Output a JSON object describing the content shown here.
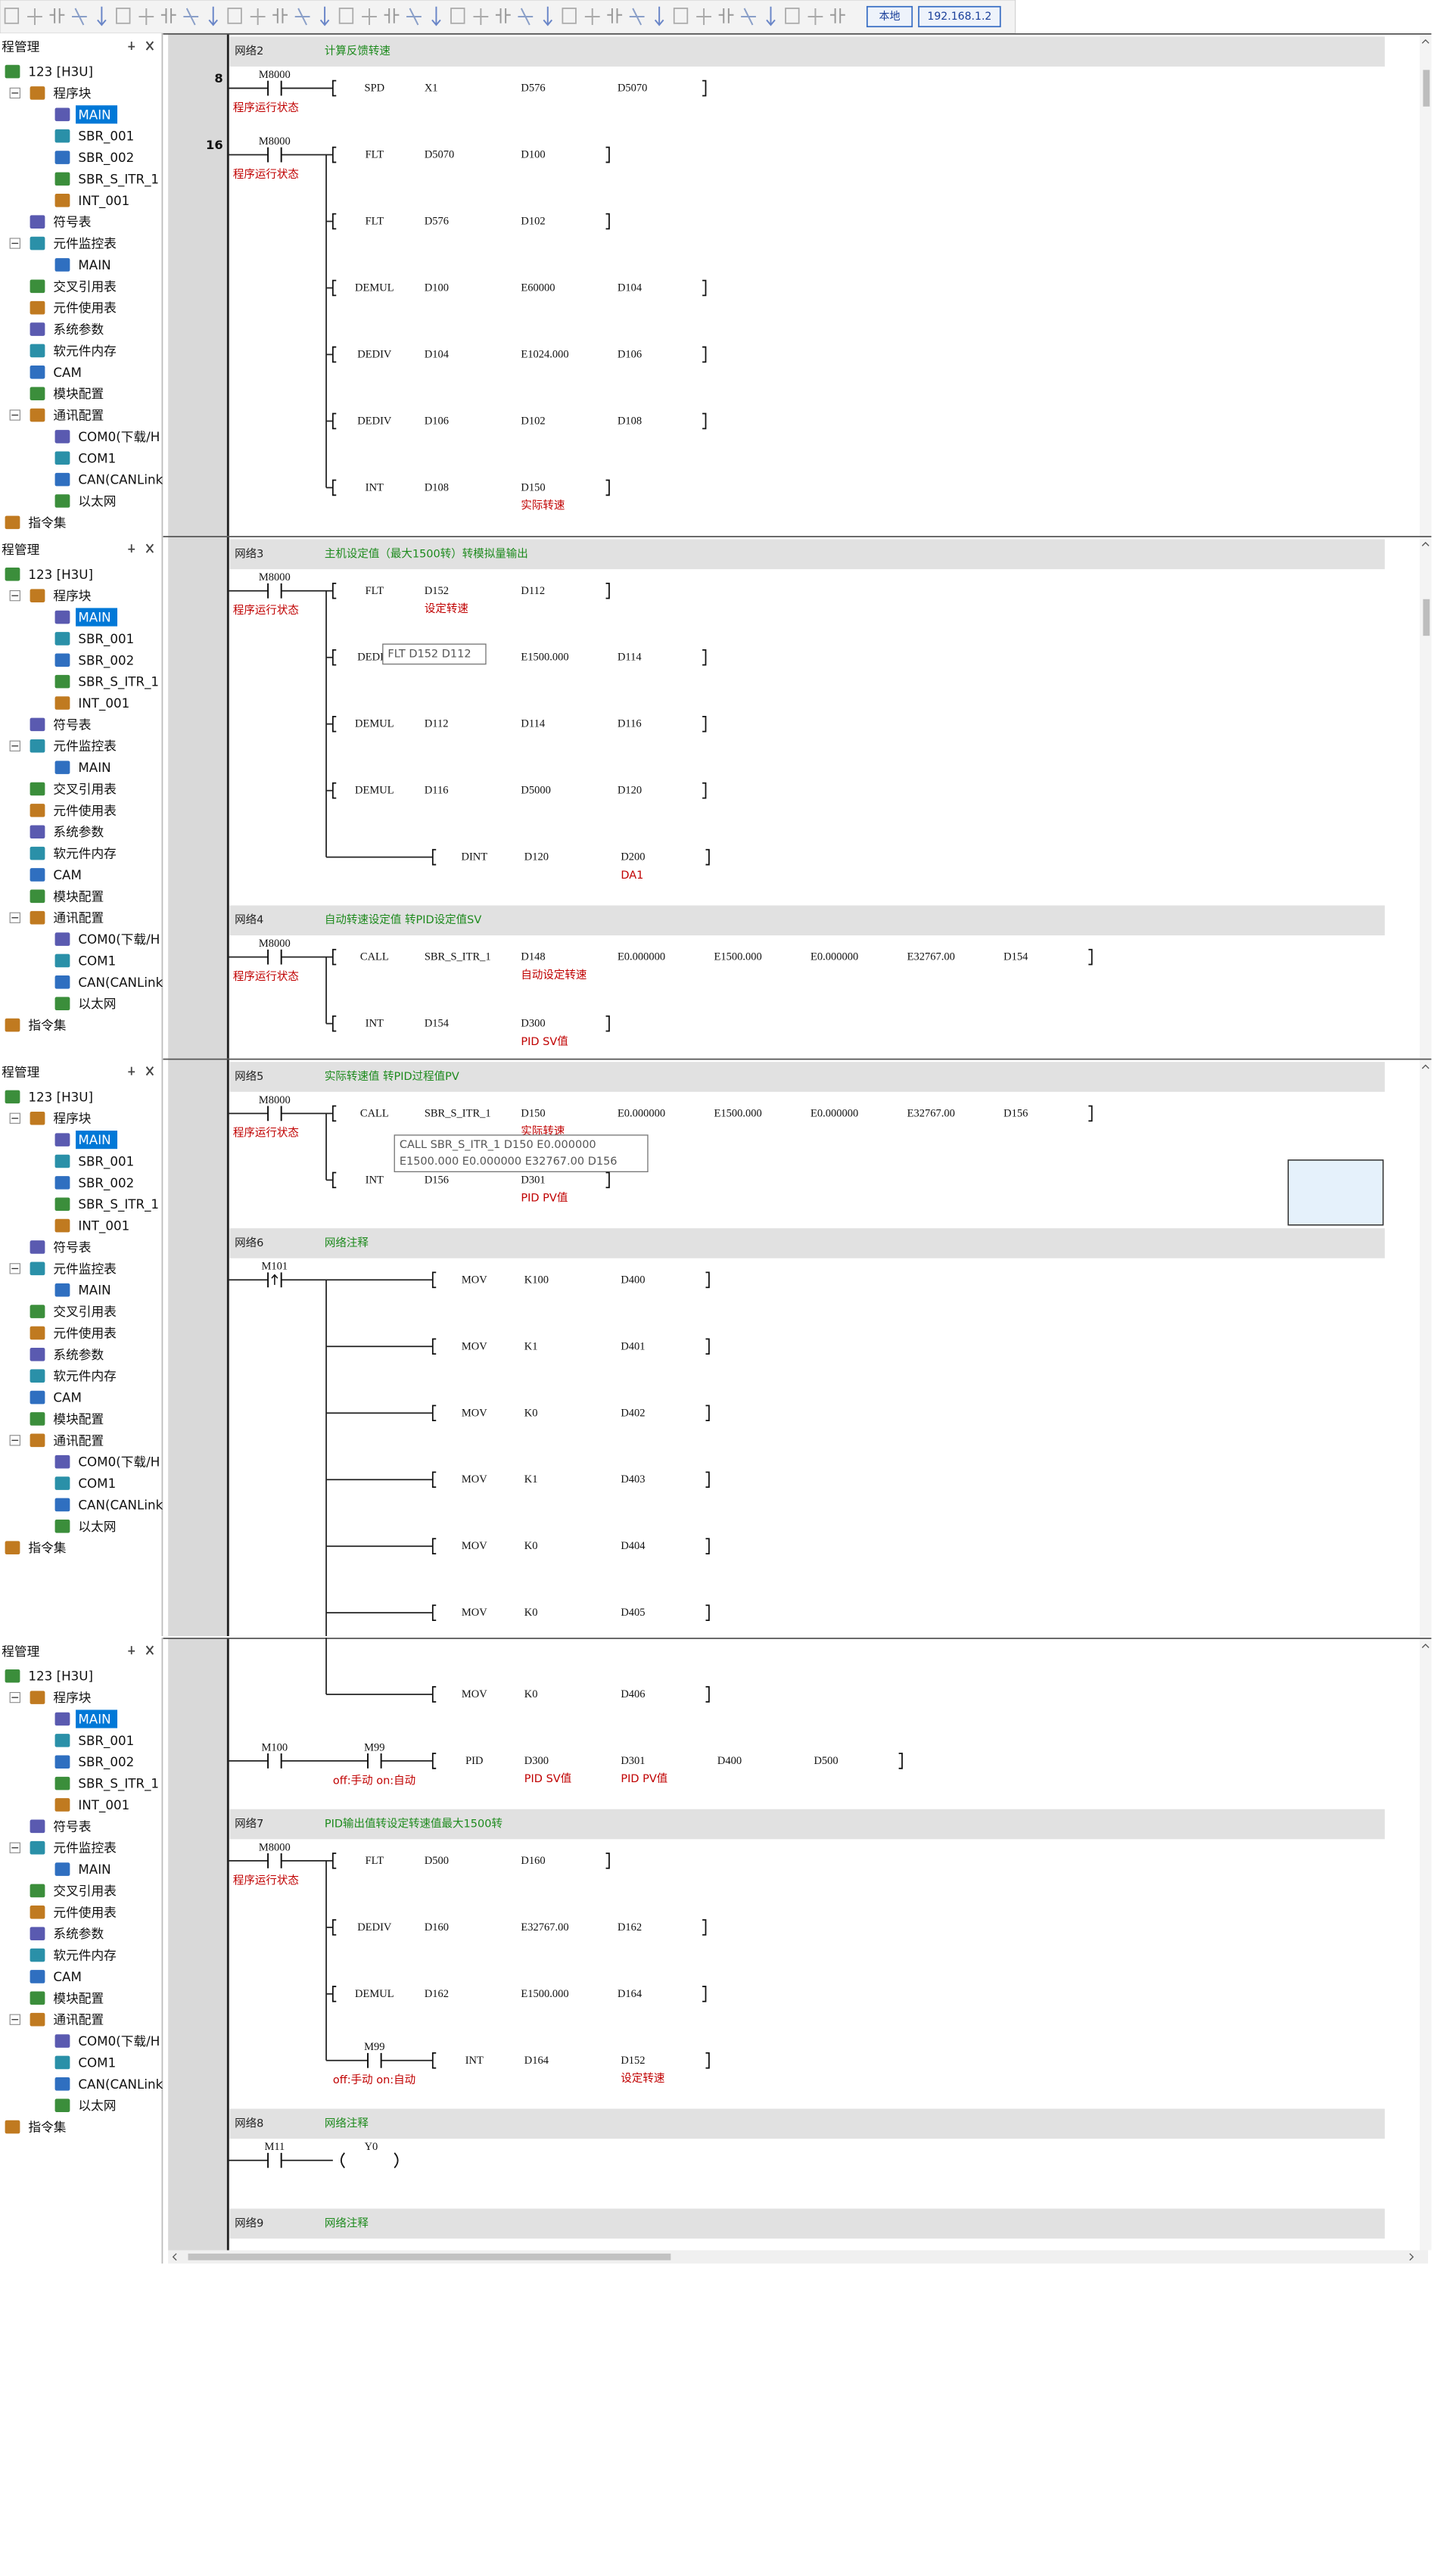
{
  "toolbar": {
    "local": "本地",
    "ip": "192.168.1.2"
  },
  "tree": {
    "title": "程管理",
    "nodes": [
      {
        "label": "123 [H3U]",
        "children": [
          {
            "label": "程序块",
            "children": [
              {
                "label": "MAIN",
                "selected": true
              },
              {
                "label": "SBR_001"
              },
              {
                "label": "SBR_002"
              },
              {
                "label": "SBR_S_ITR_1"
              },
              {
                "label": "INT_001"
              }
            ]
          },
          {
            "label": "符号表"
          },
          {
            "label": "元件监控表",
            "children": [
              {
                "label": "MAIN"
              }
            ]
          },
          {
            "label": "交叉引用表"
          },
          {
            "label": "元件使用表"
          },
          {
            "label": "系统参数"
          },
          {
            "label": "软元件内存"
          },
          {
            "label": "CAM"
          },
          {
            "label": "模块配置"
          },
          {
            "label": "通讯配置",
            "children": [
              {
                "label": "COM0(下载/H"
              },
              {
                "label": "COM1"
              },
              {
                "label": "CAN(CANLink"
              },
              {
                "label": "以太网"
              }
            ]
          }
        ]
      },
      {
        "label": "指令集"
      }
    ]
  },
  "panels": [
    {
      "items": [
        {
          "network": "网络2",
          "comment": "计算反馈转速"
        },
        {
          "step": "8",
          "rows": [
            {
              "contacts": [
                {
                  "name": "M8000",
                  "comment": "程序运行状态"
                }
              ],
              "op": "SPD",
              "args": [
                "X1",
                "D576",
                "D5070"
              ]
            }
          ]
        },
        {
          "step": "16",
          "rows": [
            {
              "contacts": [
                {
                  "name": "M8000",
                  "comment": "程序运行状态"
                }
              ],
              "op": "FLT",
              "args": [
                "D5070",
                "D100"
              ]
            },
            {
              "contacts": [],
              "op": "FLT",
              "args": [
                "D576",
                "D102"
              ]
            },
            {
              "contacts": [],
              "op": "DEMUL",
              "args": [
                "D100",
                "E60000",
                "D104"
              ]
            },
            {
              "contacts": [],
              "op": "DEDIV",
              "args": [
                "D104",
                "E1024.000",
                "D106"
              ]
            },
            {
              "contacts": [],
              "op": "DEDIV",
              "args": [
                "D106",
                "D102",
                "D108"
              ]
            },
            {
              "contacts": [],
              "op": "INT",
              "args": [
                "D108",
                "D150"
              ],
              "arg_notes": [
                null,
                "实际转速"
              ]
            }
          ]
        }
      ]
    },
    {
      "items": [
        {
          "network": "网络3",
          "comment": "主机设定值（最大1500转）转模拟量输出"
        },
        {
          "rows": [
            {
              "contacts": [
                {
                  "name": "M8000",
                  "comment": "程序运行状态"
                }
              ],
              "op": "FLT",
              "args": [
                "D152",
                "D112"
              ],
              "arg_notes": [
                "设定转速",
                null
              ]
            },
            {
              "contacts": [],
              "op": "DEDIV",
              "args": [
                null,
                "E1500.000",
                "D114"
              ],
              "tooltip": [
                "FLT D152 D112"
              ]
            },
            {
              "contacts": [],
              "op": "DEMUL",
              "args": [
                "D112",
                "D114",
                "D116"
              ]
            },
            {
              "contacts": [],
              "op": "DEMUL",
              "args": [
                "D116",
                "D5000",
                "D120"
              ]
            },
            {
              "contacts": [
                null
              ],
              "op": "DINT",
              "args": [
                "D120",
                "D200"
              ],
              "arg_notes": [
                null,
                "DA1"
              ]
            }
          ]
        },
        {
          "network": "网络4",
          "comment": "自动转速设定值 转PID设定值SV"
        },
        {
          "rows": [
            {
              "contacts": [
                {
                  "name": "M8000",
                  "comment": "程序运行状态"
                }
              ],
              "op": "CALL",
              "args": [
                "SBR_S_ITR_1",
                "D148",
                "E0.000000",
                "E1500.000",
                "E0.000000",
                "E32767.00",
                "D154"
              ],
              "arg_notes": [
                null,
                "自动设定转速",
                null,
                null,
                null,
                null,
                null
              ]
            },
            {
              "contacts": [],
              "op": "INT",
              "args": [
                "D154",
                "D300"
              ],
              "arg_notes": [
                null,
                "PID SV值"
              ]
            }
          ]
        }
      ]
    },
    {
      "items": [
        {
          "network": "网络5",
          "comment": "实际转速值 转PID过程值PV"
        },
        {
          "rows": [
            {
              "contacts": [
                {
                  "name": "M8000",
                  "comment": "程序运行状态"
                }
              ],
              "op": "CALL",
              "args": [
                "SBR_S_ITR_1",
                "D150",
                "E0.000000",
                "E1500.000",
                "E0.000000",
                "E32767.00",
                "D156"
              ],
              "arg_notes": [
                null,
                "实际转速",
                null,
                null,
                null,
                null,
                null
              ],
              "tooltip": [
                "CALL SBR_S_ITR_1 D150 E0.000000",
                "E1500.000 E0.000000 E32767.00 D156"
              ]
            },
            {
              "contacts": [],
              "op": "INT",
              "args": [
                "D156",
                "D301"
              ],
              "arg_notes": [
                null,
                "PID PV值"
              ]
            }
          ]
        },
        {
          "network": "网络6",
          "comment": "网络注释"
        },
        {
          "rows": [
            {
              "contacts": [
                {
                  "name": "M101",
                  "edge": "rising"
                },
                null
              ],
              "op": "MOV",
              "args": [
                "K100",
                "D400"
              ]
            },
            {
              "contacts": [
                null
              ],
              "op": "MOV",
              "args": [
                "K1",
                "D401"
              ]
            },
            {
              "contacts": [
                null
              ],
              "op": "MOV",
              "args": [
                "K0",
                "D402"
              ]
            },
            {
              "contacts": [
                null
              ],
              "op": "MOV",
              "args": [
                "K1",
                "D403"
              ]
            },
            {
              "contacts": [
                null
              ],
              "op": "MOV",
              "args": [
                "K0",
                "D404"
              ]
            },
            {
              "contacts": [
                null
              ],
              "op": "MOV",
              "args": [
                "K0",
                "D405"
              ]
            }
          ]
        }
      ]
    },
    {
      "items": [
        {
          "continued": true,
          "rows": [
            {
              "contacts": [
                null
              ],
              "op": "MOV",
              "args": [
                "K0",
                "D406"
              ]
            }
          ]
        },
        {
          "rows": [
            {
              "contacts": [
                {
                  "name": "M100"
                },
                {
                  "name": "M99",
                  "comment": "off:手动 on:自动"
                }
              ],
              "op": "PID",
              "args": [
                "D300",
                "D301",
                "D400",
                "D500"
              ],
              "arg_notes": [
                "PID SV值",
                "PID PV值",
                null,
                null
              ]
            }
          ]
        },
        {
          "network": "网络7",
          "comment": "PID输出值转设定转速值最大1500转"
        },
        {
          "rows": [
            {
              "contacts": [
                {
                  "name": "M8000",
                  "comment": "程序运行状态"
                }
              ],
              "op": "FLT",
              "args": [
                "D500",
                "D160"
              ]
            },
            {
              "contacts": [],
              "op": "DEDIV",
              "args": [
                "D160",
                "E32767.00",
                "D162"
              ]
            },
            {
              "contacts": [],
              "op": "DEMUL",
              "args": [
                "D162",
                "E1500.000",
                "D164"
              ]
            },
            {
              "contacts": [
                {
                  "name": "M99",
                  "comment": "off:手动 on:自动"
                }
              ],
              "op": "INT",
              "args": [
                "D164",
                "D152"
              ],
              "arg_notes": [
                null,
                "设定转速"
              ]
            }
          ]
        },
        {
          "network": "网络8",
          "comment": "网络注释"
        },
        {
          "rows": [
            {
              "contacts": [
                {
                  "name": "M11"
                }
              ],
              "coil": "Y0"
            }
          ]
        },
        {
          "network": "网络9",
          "comment": "网络注释"
        }
      ]
    }
  ]
}
